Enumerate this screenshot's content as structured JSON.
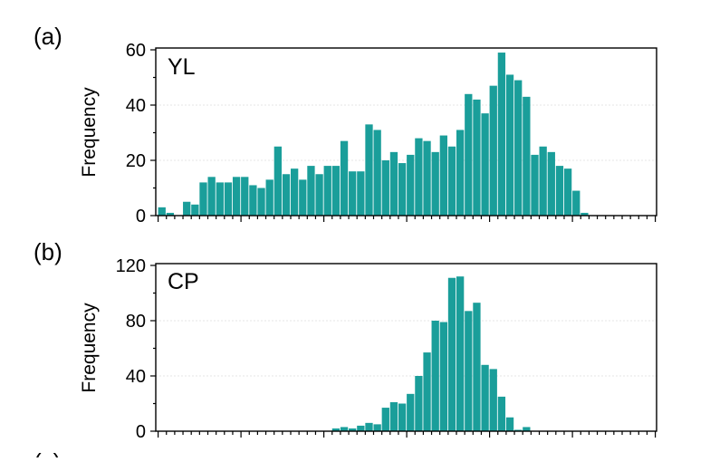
{
  "colors": {
    "bar": "#1a9e9a",
    "axis": "#000000",
    "grid": "#dcdcdc"
  },
  "panels": [
    {
      "letter": "(a)",
      "name": "YL",
      "ylabel": "Frequency",
      "yticks": [
        "0",
        "20",
        "40",
        "60"
      ]
    },
    {
      "letter": "(b)",
      "name": "CP",
      "ylabel": "Frequency",
      "yticks": [
        "0",
        "40",
        "80",
        "120"
      ]
    }
  ],
  "cutoff_label": "(c)",
  "chart_data": [
    {
      "type": "bar",
      "title": "YL",
      "ylabel": "Frequency",
      "ylim": [
        0,
        62
      ],
      "grid": true,
      "bin_count": 60,
      "values": [
        3,
        1,
        0,
        5,
        4,
        12,
        14,
        12,
        12,
        14,
        14,
        11,
        10,
        13,
        25,
        15,
        17,
        13,
        18,
        15,
        18,
        18,
        27,
        16,
        16,
        33,
        31,
        20,
        23,
        19,
        22,
        28,
        27,
        23,
        29,
        25,
        31,
        44,
        42,
        37,
        47,
        59,
        51,
        49,
        43,
        22,
        25,
        23,
        18,
        17,
        9,
        1,
        0,
        0,
        0,
        0,
        0,
        0,
        0,
        0
      ]
    },
    {
      "type": "bar",
      "title": "CP",
      "ylabel": "Frequency",
      "ylim": [
        0,
        124
      ],
      "grid": true,
      "bin_count": 60,
      "values": [
        0,
        0,
        0,
        0,
        0,
        0,
        0,
        0,
        0,
        0,
        0,
        0,
        0,
        0,
        0,
        0,
        0,
        0,
        0,
        0,
        0,
        2,
        3,
        2,
        4,
        6,
        5,
        17,
        21,
        20,
        27,
        40,
        57,
        80,
        79,
        111,
        112,
        87,
        93,
        48,
        45,
        25,
        10,
        1,
        3,
        0,
        0,
        0,
        0,
        0,
        0,
        0,
        0,
        0,
        0,
        0,
        0,
        0,
        0,
        0
      ]
    }
  ]
}
